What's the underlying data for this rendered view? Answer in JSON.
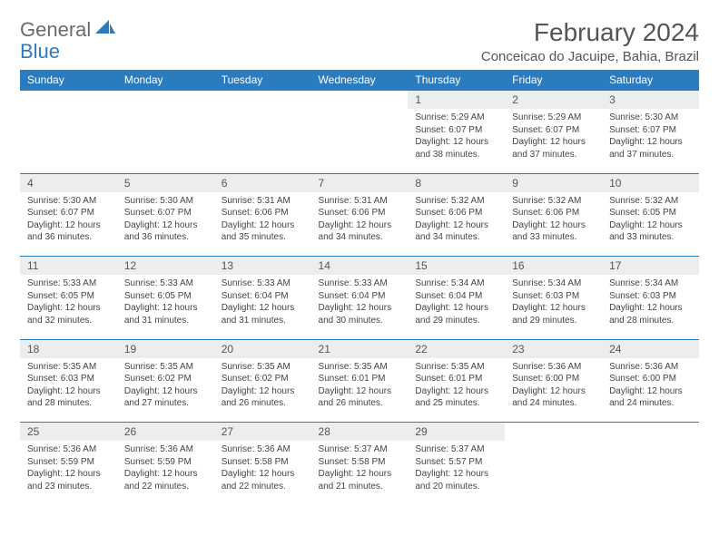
{
  "logo": {
    "text1": "General",
    "text2": "Blue"
  },
  "header": {
    "title": "February 2024",
    "location": "Conceicao do Jacuipe, Bahia, Brazil"
  },
  "weekdays": [
    "Sunday",
    "Monday",
    "Tuesday",
    "Wednesday",
    "Thursday",
    "Friday",
    "Saturday"
  ],
  "colors": {
    "header_bg": "#2b7bbf",
    "daynum_bg": "#eceded",
    "rule": "#2b7bbf"
  },
  "weeks": [
    [
      null,
      null,
      null,
      null,
      {
        "n": "1",
        "sr": "Sunrise: 5:29 AM",
        "ss": "Sunset: 6:07 PM",
        "d1": "Daylight: 12 hours",
        "d2": "and 38 minutes."
      },
      {
        "n": "2",
        "sr": "Sunrise: 5:29 AM",
        "ss": "Sunset: 6:07 PM",
        "d1": "Daylight: 12 hours",
        "d2": "and 37 minutes."
      },
      {
        "n": "3",
        "sr": "Sunrise: 5:30 AM",
        "ss": "Sunset: 6:07 PM",
        "d1": "Daylight: 12 hours",
        "d2": "and 37 minutes."
      }
    ],
    [
      {
        "n": "4",
        "sr": "Sunrise: 5:30 AM",
        "ss": "Sunset: 6:07 PM",
        "d1": "Daylight: 12 hours",
        "d2": "and 36 minutes."
      },
      {
        "n": "5",
        "sr": "Sunrise: 5:30 AM",
        "ss": "Sunset: 6:07 PM",
        "d1": "Daylight: 12 hours",
        "d2": "and 36 minutes."
      },
      {
        "n": "6",
        "sr": "Sunrise: 5:31 AM",
        "ss": "Sunset: 6:06 PM",
        "d1": "Daylight: 12 hours",
        "d2": "and 35 minutes."
      },
      {
        "n": "7",
        "sr": "Sunrise: 5:31 AM",
        "ss": "Sunset: 6:06 PM",
        "d1": "Daylight: 12 hours",
        "d2": "and 34 minutes."
      },
      {
        "n": "8",
        "sr": "Sunrise: 5:32 AM",
        "ss": "Sunset: 6:06 PM",
        "d1": "Daylight: 12 hours",
        "d2": "and 34 minutes."
      },
      {
        "n": "9",
        "sr": "Sunrise: 5:32 AM",
        "ss": "Sunset: 6:06 PM",
        "d1": "Daylight: 12 hours",
        "d2": "and 33 minutes."
      },
      {
        "n": "10",
        "sr": "Sunrise: 5:32 AM",
        "ss": "Sunset: 6:05 PM",
        "d1": "Daylight: 12 hours",
        "d2": "and 33 minutes."
      }
    ],
    [
      {
        "n": "11",
        "sr": "Sunrise: 5:33 AM",
        "ss": "Sunset: 6:05 PM",
        "d1": "Daylight: 12 hours",
        "d2": "and 32 minutes."
      },
      {
        "n": "12",
        "sr": "Sunrise: 5:33 AM",
        "ss": "Sunset: 6:05 PM",
        "d1": "Daylight: 12 hours",
        "d2": "and 31 minutes."
      },
      {
        "n": "13",
        "sr": "Sunrise: 5:33 AM",
        "ss": "Sunset: 6:04 PM",
        "d1": "Daylight: 12 hours",
        "d2": "and 31 minutes."
      },
      {
        "n": "14",
        "sr": "Sunrise: 5:33 AM",
        "ss": "Sunset: 6:04 PM",
        "d1": "Daylight: 12 hours",
        "d2": "and 30 minutes."
      },
      {
        "n": "15",
        "sr": "Sunrise: 5:34 AM",
        "ss": "Sunset: 6:04 PM",
        "d1": "Daylight: 12 hours",
        "d2": "and 29 minutes."
      },
      {
        "n": "16",
        "sr": "Sunrise: 5:34 AM",
        "ss": "Sunset: 6:03 PM",
        "d1": "Daylight: 12 hours",
        "d2": "and 29 minutes."
      },
      {
        "n": "17",
        "sr": "Sunrise: 5:34 AM",
        "ss": "Sunset: 6:03 PM",
        "d1": "Daylight: 12 hours",
        "d2": "and 28 minutes."
      }
    ],
    [
      {
        "n": "18",
        "sr": "Sunrise: 5:35 AM",
        "ss": "Sunset: 6:03 PM",
        "d1": "Daylight: 12 hours",
        "d2": "and 28 minutes."
      },
      {
        "n": "19",
        "sr": "Sunrise: 5:35 AM",
        "ss": "Sunset: 6:02 PM",
        "d1": "Daylight: 12 hours",
        "d2": "and 27 minutes."
      },
      {
        "n": "20",
        "sr": "Sunrise: 5:35 AM",
        "ss": "Sunset: 6:02 PM",
        "d1": "Daylight: 12 hours",
        "d2": "and 26 minutes."
      },
      {
        "n": "21",
        "sr": "Sunrise: 5:35 AM",
        "ss": "Sunset: 6:01 PM",
        "d1": "Daylight: 12 hours",
        "d2": "and 26 minutes."
      },
      {
        "n": "22",
        "sr": "Sunrise: 5:35 AM",
        "ss": "Sunset: 6:01 PM",
        "d1": "Daylight: 12 hours",
        "d2": "and 25 minutes."
      },
      {
        "n": "23",
        "sr": "Sunrise: 5:36 AM",
        "ss": "Sunset: 6:00 PM",
        "d1": "Daylight: 12 hours",
        "d2": "and 24 minutes."
      },
      {
        "n": "24",
        "sr": "Sunrise: 5:36 AM",
        "ss": "Sunset: 6:00 PM",
        "d1": "Daylight: 12 hours",
        "d2": "and 24 minutes."
      }
    ],
    [
      {
        "n": "25",
        "sr": "Sunrise: 5:36 AM",
        "ss": "Sunset: 5:59 PM",
        "d1": "Daylight: 12 hours",
        "d2": "and 23 minutes."
      },
      {
        "n": "26",
        "sr": "Sunrise: 5:36 AM",
        "ss": "Sunset: 5:59 PM",
        "d1": "Daylight: 12 hours",
        "d2": "and 22 minutes."
      },
      {
        "n": "27",
        "sr": "Sunrise: 5:36 AM",
        "ss": "Sunset: 5:58 PM",
        "d1": "Daylight: 12 hours",
        "d2": "and 22 minutes."
      },
      {
        "n": "28",
        "sr": "Sunrise: 5:37 AM",
        "ss": "Sunset: 5:58 PM",
        "d1": "Daylight: 12 hours",
        "d2": "and 21 minutes."
      },
      {
        "n": "29",
        "sr": "Sunrise: 5:37 AM",
        "ss": "Sunset: 5:57 PM",
        "d1": "Daylight: 12 hours",
        "d2": "and 20 minutes."
      },
      null,
      null
    ]
  ]
}
